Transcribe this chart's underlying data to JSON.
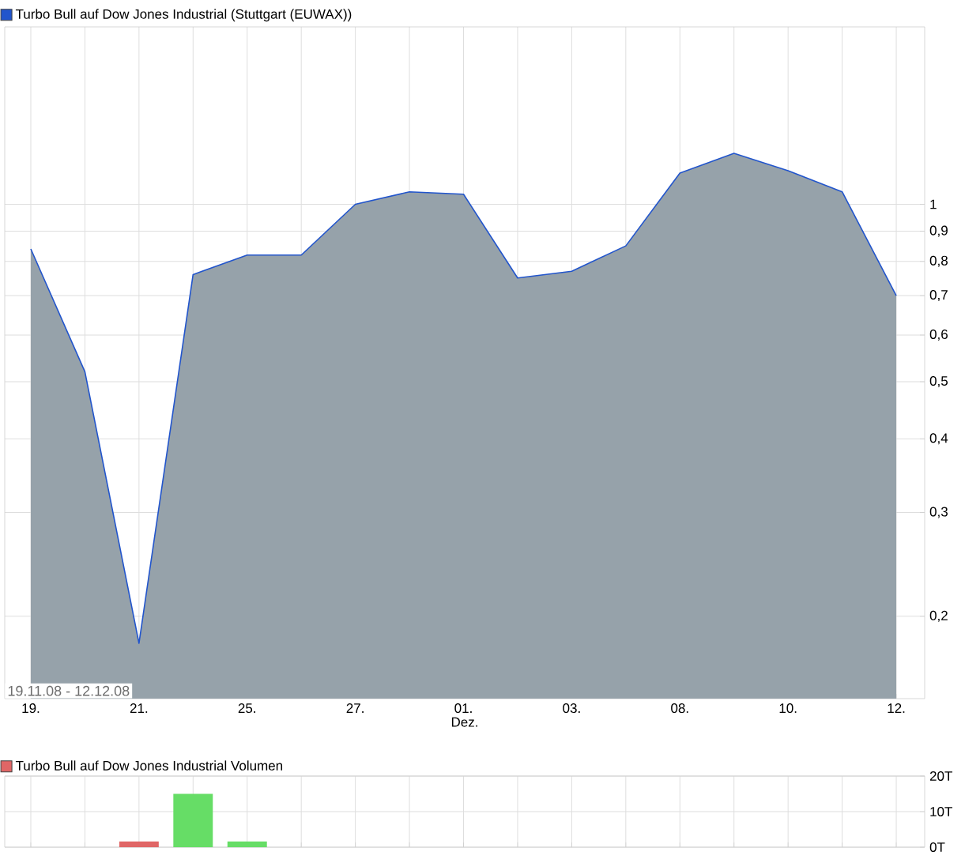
{
  "chart_data": [
    {
      "type": "area",
      "categories": [
        "19.",
        null,
        "21.",
        null,
        "25.",
        null,
        "27.",
        null,
        "01.",
        null,
        "03.",
        null,
        "08.",
        null,
        "10.",
        null,
        "12."
      ],
      "xlabel": "Dez.",
      "series": [
        {
          "name": "Turbo Bull auf Dow Jones Industrial  (Stuttgart (EUWAX))",
          "color": "#2255cc",
          "values": [
            0.84,
            0.52,
            0.18,
            0.76,
            0.82,
            0.82,
            1.0,
            1.05,
            1.04,
            0.75,
            0.77,
            0.85,
            1.13,
            1.22,
            1.14,
            1.05,
            0.7
          ]
        }
      ],
      "log": "y",
      "ylim": [
        0.145,
        2.0
      ],
      "yticks": [
        {
          "value": 0.2,
          "label": "0,2"
        },
        {
          "value": 0.3,
          "label": "0,3"
        },
        {
          "value": 0.4,
          "label": "0,4"
        },
        {
          "value": 0.5,
          "label": "0,5"
        },
        {
          "value": 0.6,
          "label": "0,6"
        },
        {
          "value": 0.7,
          "label": "0,7"
        },
        {
          "value": 0.8,
          "label": "0,8"
        },
        {
          "value": 0.9,
          "label": "0,9"
        },
        1
      ],
      "grid": true,
      "legend": "top left",
      "annotations": [
        "19.11.08 - 12.12.08"
      ]
    },
    {
      "type": "bar",
      "categories": [
        "19.",
        null,
        "21.",
        null,
        "25.",
        null,
        "27.",
        null,
        "01.",
        null,
        "03.",
        null,
        "08.",
        null,
        "10.",
        null,
        "12."
      ],
      "series": [
        {
          "name": "Turbo Bull auf Dow Jones Industrial  Volumen",
          "color": "#e06666",
          "values": [
            null,
            null,
            1.6,
            15,
            1.6,
            null,
            null,
            null,
            null,
            null,
            null,
            null,
            null,
            null,
            null,
            null,
            null
          ],
          "colors": [
            "#e06666",
            "#e06666",
            "#e06666",
            "#66dd66",
            "#66dd66",
            "#66dd66",
            "#66dd66",
            "#66dd66",
            "#66dd66",
            "#66dd66",
            "#66dd66",
            "#66dd66",
            "#66dd66",
            "#66dd66",
            "#66dd66",
            "#66dd66",
            "#66dd66"
          ]
        }
      ],
      "ylim": [
        0,
        20
      ],
      "yticks": [
        {
          "value": 0,
          "label": "0T"
        },
        {
          "value": 10,
          "label": "10T"
        },
        {
          "value": 20,
          "label": "20T"
        }
      ],
      "grid": true,
      "legend": "top left",
      "tick_labels": "y"
    }
  ]
}
